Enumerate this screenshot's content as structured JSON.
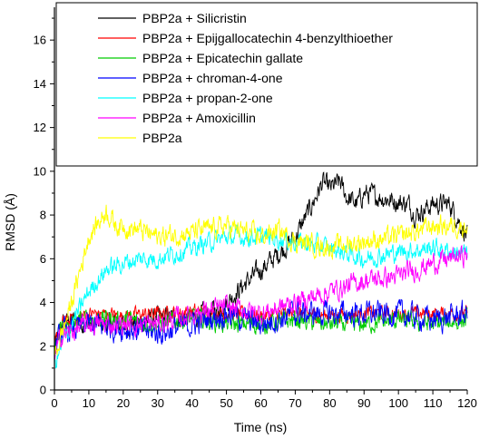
{
  "chart_data": {
    "type": "line",
    "title": "",
    "xlabel": "Time (ns)",
    "ylabel": "RMSD (Å)",
    "xlim": [
      0,
      120
    ],
    "ylim": [
      0,
      17.5
    ],
    "xticks": [
      "0",
      "10",
      "20",
      "30",
      "40",
      "50",
      "60",
      "70",
      "80",
      "90",
      "100",
      "110",
      "120"
    ],
    "yticks": [
      "0",
      "2",
      "4",
      "6",
      "8",
      "10",
      "12",
      "14",
      "16"
    ],
    "grid": false,
    "legend_position": "top-inside",
    "series": [
      {
        "name": "PBP2a + Silicristin",
        "color": "#000000",
        "noise": 0.5,
        "x": [
          0,
          2,
          5,
          10,
          15,
          20,
          25,
          30,
          35,
          40,
          45,
          50,
          55,
          60,
          65,
          70,
          75,
          78,
          80,
          83,
          85,
          88,
          90,
          95,
          100,
          103,
          105,
          110,
          115,
          120
        ],
        "y": [
          1.8,
          3.0,
          3.2,
          3.0,
          3.0,
          3.0,
          3.1,
          3.3,
          3.3,
          3.3,
          3.5,
          4.0,
          4.8,
          5.5,
          6.2,
          7.0,
          8.5,
          9.5,
          9.2,
          9.5,
          8.8,
          8.5,
          9.0,
          8.8,
          8.6,
          8.5,
          8.0,
          8.5,
          8.5,
          7.0
        ]
      },
      {
        "name": "PBP2a + Epijgallocatechin 4-benzylthioether",
        "color": "#ff0000",
        "noise": 0.35,
        "x": [
          0,
          2,
          10,
          20,
          30,
          40,
          50,
          60,
          70,
          80,
          90,
          100,
          110,
          120
        ],
        "y": [
          2.0,
          3.0,
          3.5,
          3.4,
          3.5,
          3.6,
          3.5,
          3.4,
          3.5,
          3.4,
          3.5,
          3.5,
          3.5,
          3.5
        ]
      },
      {
        "name": "PBP2a + Epicatechin gallate",
        "color": "#00cc00",
        "noise": 0.45,
        "x": [
          0,
          2,
          10,
          20,
          30,
          40,
          50,
          60,
          70,
          80,
          90,
          100,
          110,
          120
        ],
        "y": [
          1.8,
          2.8,
          3.3,
          3.2,
          3.0,
          3.3,
          3.0,
          3.0,
          3.2,
          3.0,
          3.0,
          3.2,
          3.0,
          3.2
        ]
      },
      {
        "name": "PBP2a + chroman-4-one",
        "color": "#0000ff",
        "noise": 0.6,
        "x": [
          0,
          2,
          10,
          20,
          30,
          40,
          50,
          60,
          70,
          80,
          90,
          100,
          110,
          120
        ],
        "y": [
          1.8,
          2.6,
          3.0,
          2.8,
          2.6,
          3.0,
          3.5,
          3.0,
          3.5,
          3.5,
          3.5,
          3.5,
          3.2,
          3.5
        ]
      },
      {
        "name": "PBP2a + propan-2-one",
        "color": "#00ffff",
        "noise": 0.45,
        "x": [
          0,
          2,
          5,
          10,
          15,
          20,
          25,
          30,
          40,
          50,
          60,
          70,
          80,
          90,
          100,
          110,
          120
        ],
        "y": [
          1.0,
          2.0,
          3.0,
          4.5,
          5.5,
          5.8,
          6.0,
          6.0,
          6.5,
          7.0,
          7.0,
          6.8,
          6.5,
          6.0,
          6.3,
          6.5,
          6.2
        ]
      },
      {
        "name": "PBP2a + Amoxicillin",
        "color": "#ff00ff",
        "noise": 0.5,
        "x": [
          0,
          2,
          10,
          20,
          30,
          40,
          50,
          60,
          70,
          80,
          90,
          100,
          110,
          120
        ],
        "y": [
          1.5,
          2.5,
          3.0,
          3.0,
          3.0,
          3.5,
          3.8,
          3.5,
          4.0,
          4.5,
          5.0,
          5.2,
          5.8,
          6.2
        ]
      },
      {
        "name": "PBP2a",
        "color": "#ffff00",
        "noise": 0.5,
        "x": [
          0,
          2,
          5,
          10,
          15,
          18,
          20,
          25,
          30,
          40,
          50,
          60,
          65,
          70,
          80,
          90,
          100,
          110,
          120
        ],
        "y": [
          1.5,
          2.5,
          4.0,
          7.0,
          8.2,
          7.5,
          7.5,
          7.3,
          7.0,
          7.2,
          7.5,
          7.0,
          7.3,
          6.8,
          6.5,
          6.8,
          7.0,
          7.5,
          7.5
        ]
      }
    ]
  }
}
